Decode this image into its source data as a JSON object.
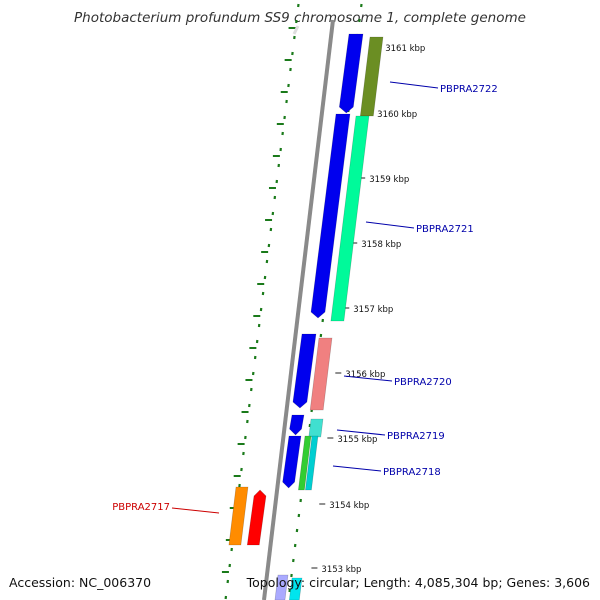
{
  "title": "Photobacterium profundum SS9 chromosome 1, complete genome",
  "accession_text": "Accession: NC_006370",
  "summary_text": "Topology: circular; Length: 4,085,304 bp; Genes: 3,606",
  "ticks": [
    "3161 kbp",
    "3160 kbp",
    "3159 kbp",
    "3158 kbp",
    "3157 kbp",
    "3156 kbp",
    "3155 kbp",
    "3154 kbp",
    "3153 kbp"
  ],
  "gene_labels": [
    {
      "text": "PBPRA2722",
      "color": "#0000aa"
    },
    {
      "text": "PBPRA2721",
      "color": "#0000aa"
    },
    {
      "text": "PBPRA2720",
      "color": "#0000aa"
    },
    {
      "text": "PBPRA2719",
      "color": "#0000aa"
    },
    {
      "text": "PBPRA2718",
      "color": "#0000aa"
    },
    {
      "text": "PBPRA2717",
      "color": "#cc0000"
    }
  ],
  "colors": {
    "backbone": "#8a8a8a",
    "cds_blue": "#0000ee",
    "tick_green": "#1a7a1a",
    "ruler": "#222222",
    "olive": "#6b8e23",
    "spring_green": "#00fa9a",
    "light_coral": "#f08080",
    "turquoise": "#40e0d0",
    "green": "#32cd32",
    "dark_turquoise": "#00ced1",
    "orange": "#ff8c00",
    "red": "#ff0000",
    "lavender": "#aaaaff",
    "cyan": "#00e5ee"
  }
}
